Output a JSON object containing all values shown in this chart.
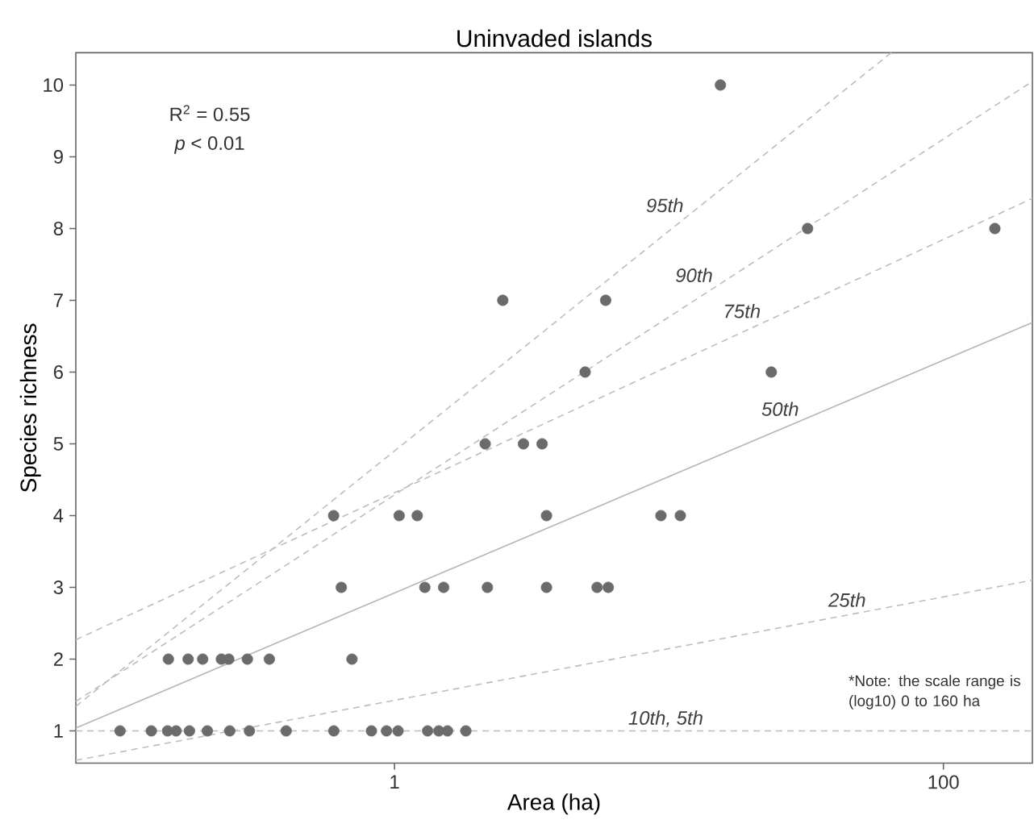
{
  "chart_data": {
    "type": "scatter",
    "title": "Uninvaded islands",
    "xlabel": "Area (ha)",
    "ylabel": "Species richness",
    "log": "x",
    "grid": false,
    "xlim": [
      0.069,
      211
    ],
    "ylim": [
      0.55,
      10.45
    ],
    "xticks": [
      1,
      100
    ],
    "yticks": [
      1,
      2,
      3,
      4,
      5,
      6,
      7,
      8,
      9,
      10
    ],
    "annotations": [
      "R$^{2}$ = 0.55",
      "*p* < 0.01",
      "*Note: the scale range is (log10) 0 to 160 ha"
    ],
    "series": [
      {
        "marker": "circle",
        "color": "#6b6b6b",
        "x": [
          0.1,
          0.13,
          0.149,
          0.16,
          0.179,
          0.208,
          0.251,
          0.296,
          0.403,
          0.601,
          0.824,
          0.935,
          1.03,
          1.32,
          1.45,
          1.56,
          1.82,
          0.15,
          0.177,
          0.2,
          0.234,
          0.249,
          0.291,
          0.35,
          0.7,
          0.64,
          1.29,
          1.51,
          2.18,
          3.58,
          5.47,
          6.01,
          0.6,
          1.04,
          1.21,
          3.58,
          9.35,
          11.0,
          2.14,
          2.95,
          3.45,
          4.95,
          23.6,
          2.48,
          5.88,
          32.0,
          154,
          15.4
        ],
        "values": [
          1,
          1,
          1,
          1,
          1,
          1,
          1,
          1,
          1,
          1,
          1,
          1,
          1,
          1,
          1,
          1,
          1,
          2,
          2,
          2,
          2,
          2,
          2,
          2,
          2,
          3,
          3,
          3,
          3,
          3,
          3,
          3,
          4,
          4,
          4,
          4,
          4,
          4,
          5,
          5,
          5,
          6,
          6,
          7,
          7,
          8,
          8,
          10
        ]
      },
      {
        "type": "line",
        "name": "95th",
        "line_style": "dashed",
        "color": "#bdbdbd",
        "x": [
          0.069,
          64.6
        ],
        "values": [
          1.34,
          10.45
        ]
      },
      {
        "type": "line",
        "name": "90th",
        "line_style": "dashed",
        "color": "#bdbdbd",
        "x": [
          0.069,
          211
        ],
        "values": [
          1.41,
          10.05
        ]
      },
      {
        "type": "line",
        "name": "75th",
        "line_style": "dashed",
        "color": "#bdbdbd",
        "x": [
          0.069,
          211
        ],
        "values": [
          2.27,
          8.42
        ]
      },
      {
        "type": "line",
        "name": "50th",
        "line_style": "solid",
        "color": "#b5b5b5",
        "x": [
          0.069,
          211
        ],
        "values": [
          1.04,
          6.69
        ]
      },
      {
        "type": "line",
        "name": "25th",
        "line_style": "dashed",
        "color": "#bdbdbd",
        "x": [
          0.069,
          211
        ],
        "values": [
          0.59,
          3.1
        ]
      },
      {
        "type": "line",
        "name": "10th, 5th",
        "line_style": "dashed",
        "color": "#bdbdbd",
        "x": [
          0.069,
          211
        ],
        "values": [
          1,
          1
        ]
      }
    ]
  }
}
